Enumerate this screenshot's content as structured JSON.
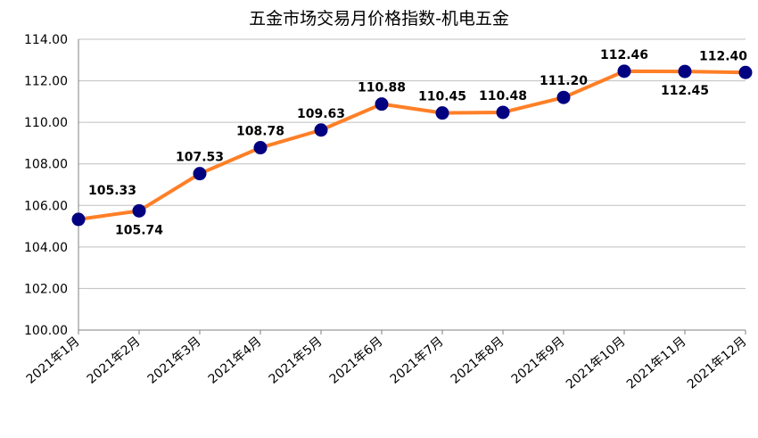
{
  "chart_data": {
    "type": "line",
    "title": "五金市场交易月价格指数-机电五金",
    "xlabel": "",
    "ylabel": "",
    "categories": [
      "2021年1月",
      "2021年2月",
      "2021年3月",
      "2021年4月",
      "2021年5月",
      "2021年6月",
      "2021年7月",
      "2021年8月",
      "2021年9月",
      "2021年10月",
      "2021年11月",
      "2021年12月"
    ],
    "series": [
      {
        "values": [
          105.33,
          105.74,
          107.53,
          108.78,
          109.63,
          110.88,
          110.45,
          110.48,
          111.2,
          112.46,
          112.45,
          112.4
        ]
      }
    ],
    "ylim": [
      100,
      114
    ],
    "yticks": [
      "100.00",
      "102.00",
      "104.00",
      "106.00",
      "108.00",
      "110.00",
      "112.00",
      "114.00"
    ],
    "grid": true,
    "colors": {
      "line": "#FF7F27",
      "marker": "#000080",
      "grid": "#BFBFBF"
    }
  }
}
